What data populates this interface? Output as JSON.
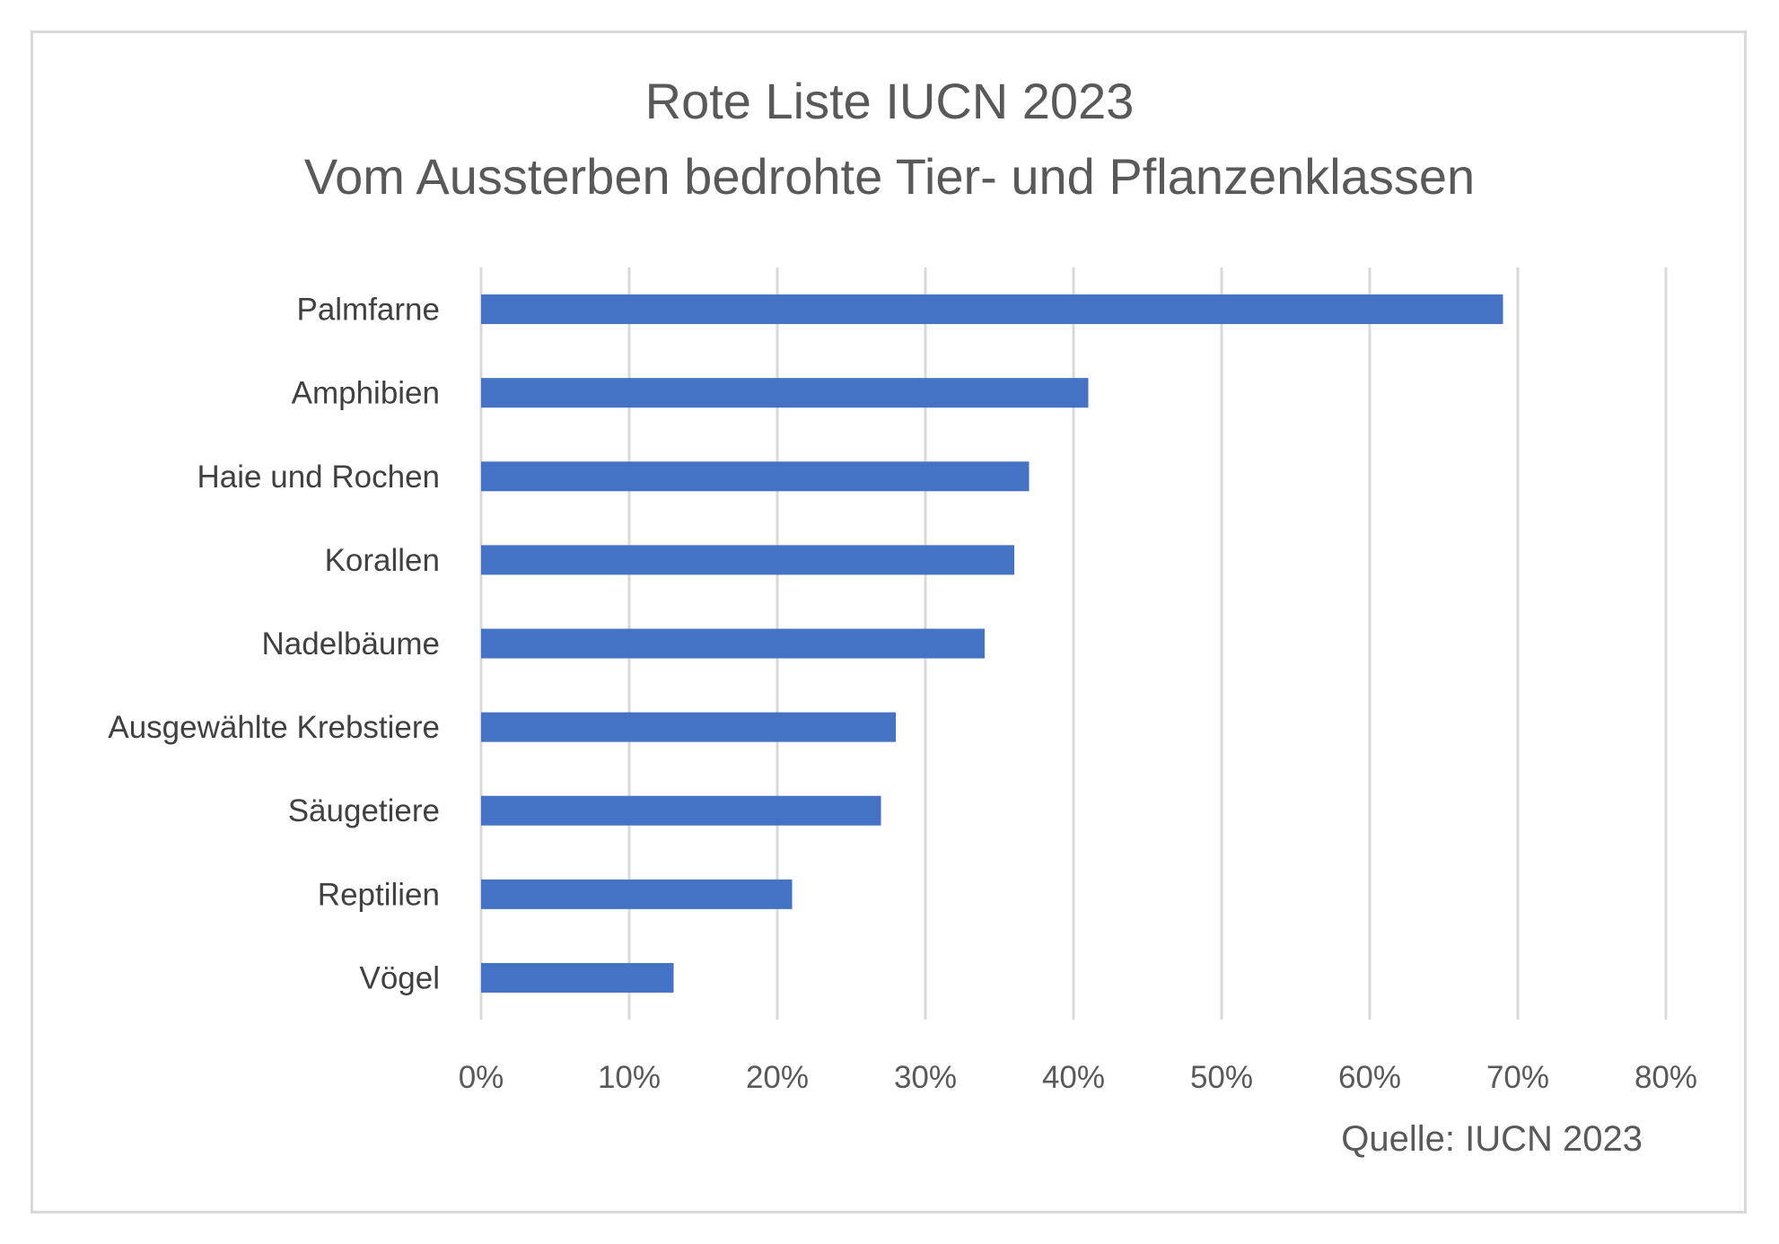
{
  "chart_data": {
    "type": "bar",
    "orientation": "horizontal",
    "title": "Rote Liste IUCN 2023",
    "subtitle": "Vom Aussterben bedrohte Tier- und Pflanzenklassen",
    "categories": [
      "Palmfarne",
      "Amphibien",
      "Haie und Rochen",
      "Korallen",
      "Nadelbäume",
      "Ausgewählte Krebstiere",
      "Säugetiere",
      "Reptilien",
      "Vögel"
    ],
    "values": [
      69,
      41,
      37,
      36,
      34,
      28,
      27,
      21,
      13
    ],
    "xlim": [
      0,
      80
    ],
    "x_ticks": [
      0,
      10,
      20,
      30,
      40,
      50,
      60,
      70,
      80
    ],
    "x_tick_labels": [
      "0%",
      "10%",
      "20%",
      "30%",
      "40%",
      "50%",
      "60%",
      "70%",
      "80%"
    ],
    "xlabel": "",
    "ylabel": "",
    "grid": "vertical",
    "legend": "none",
    "source": "Quelle: IUCN 2023",
    "bar_color": "#4472c4"
  }
}
